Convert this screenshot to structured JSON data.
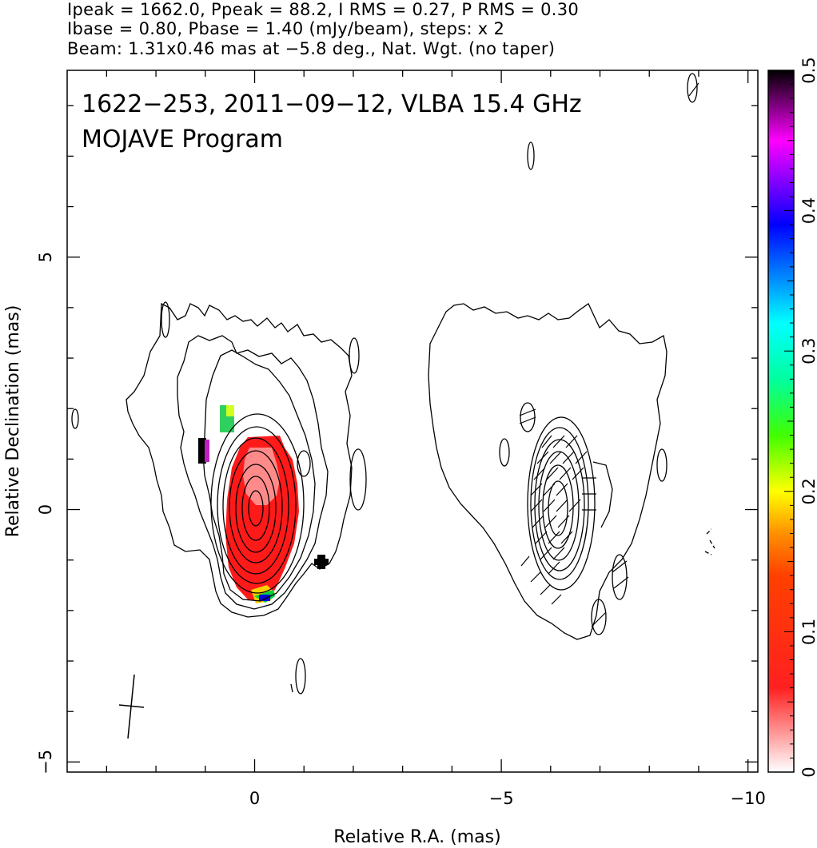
{
  "header": {
    "line1": "Ipeak = 1662.0, Ppeak = 88.2, I RMS = 0.27, P RMS = 0.30",
    "line2": "Ibase = 0.80, Pbase = 1.40 (mJy/beam), steps: x 2",
    "line3": "Beam: 1.31x0.46 mas at −5.8 deg., Nat. Wgt. (no taper)"
  },
  "chart_data": {
    "type": "heatmap",
    "title": "1622−253, 2011−09−12, VLBA 15.4 GHz",
    "subtitle": "MOJAVE Program",
    "xlabel": "Relative R.A. (mas)",
    "ylabel": "Relative Declination (mas)",
    "xlim": [
      3.8,
      -10.2
    ],
    "ylim": [
      -5.2,
      8.7
    ],
    "x_ticks": [
      {
        "value": 0,
        "label": "0"
      },
      {
        "value": -5,
        "label": "−5"
      },
      {
        "value": -10,
        "label": "−10"
      }
    ],
    "y_ticks": [
      {
        "value": 5,
        "label": "5"
      },
      {
        "value": 0,
        "label": "0"
      },
      {
        "value": -5,
        "label": "−5"
      }
    ],
    "colorbar": {
      "range": [
        0,
        0.5
      ],
      "ticks": [
        {
          "value": 0,
          "label": "0"
        },
        {
          "value": 0.1,
          "label": "0.1"
        },
        {
          "value": 0.2,
          "label": "0.2"
        },
        {
          "value": 0.3,
          "label": "0.3"
        },
        {
          "value": 0.4,
          "label": "0.4"
        },
        {
          "value": 0.5,
          "label": "0.5"
        }
      ],
      "colors": [
        "#ffffff",
        "#ff0000",
        "#ff8000",
        "#ffff00",
        "#00ff00",
        "#00ffff",
        "#0000ff",
        "#ff00ff",
        "#000000"
      ]
    },
    "stokes_i_contours": {
      "base_mJy_per_beam": 0.8,
      "step_factor": 2,
      "peak_mJy_per_beam": 1662.0,
      "core_position": [
        0,
        0
      ]
    },
    "polarization_contours": {
      "base_mJy_per_beam": 1.4,
      "peak_mJy_per_beam": 88.2,
      "offset_ra_mas": -6.0
    },
    "fractional_polarization_peak_region": {
      "ra": 0.0,
      "dec": 0.2,
      "value": 0.05
    },
    "markers": [
      {
        "type": "cross",
        "ra": -1.3,
        "dec": -1.0
      }
    ],
    "beam": {
      "major_mas": 1.31,
      "minor_mas": 0.46,
      "pa_deg": -5.8,
      "position": [
        2.5,
        -4.0
      ]
    },
    "grid": false
  }
}
